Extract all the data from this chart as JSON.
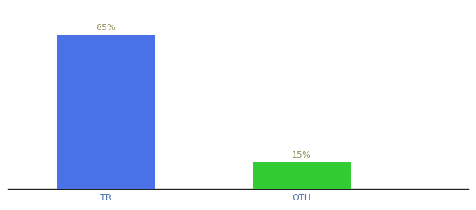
{
  "categories": [
    "TR",
    "OTH"
  ],
  "values": [
    85,
    15
  ],
  "bar_colors": [
    "#4a72e8",
    "#33cc33"
  ],
  "label_color": "#999966",
  "label_fontsize": 9,
  "xlabel_fontsize": 9,
  "xlabel_color": "#5577aa",
  "background_color": "#ffffff",
  "ylim": [
    0,
    100
  ],
  "bar_width": 0.5,
  "x_positions": [
    1,
    2
  ],
  "xlim": [
    0.5,
    2.85
  ],
  "annotations": [
    "85%",
    "15%"
  ]
}
